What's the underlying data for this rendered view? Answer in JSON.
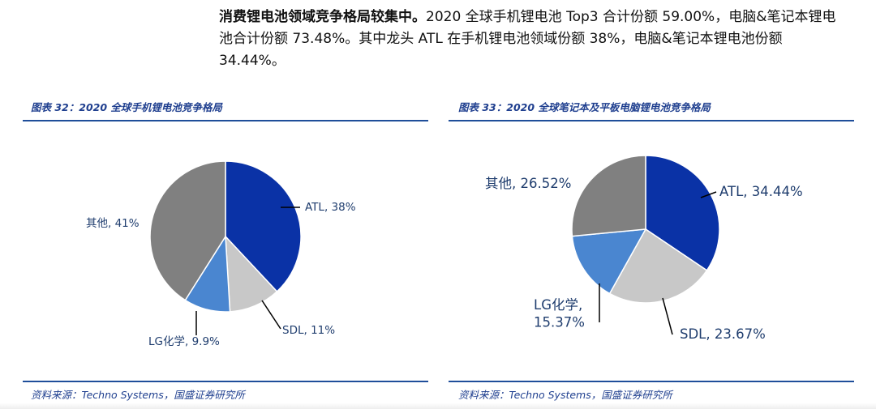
{
  "intro": {
    "lead": "消费锂电池领域竞争格局较集中。",
    "body": "2020 全球手机锂电池 Top3 合计份额 59.00%，电脑&笔记本锂电池合计份额 73.48%。其中龙头 ATL 在手机锂电池领域份额 38%，电脑&笔记本锂电池份额 34.44%。"
  },
  "colors": {
    "ATL": "#0a32a6",
    "SDL": "#c8c8c8",
    "LG": "#4a86d0",
    "other": "#808080",
    "label": "#1f3d6e",
    "title": "#1f3f8f",
    "rule": "#1f4e9a"
  },
  "chart_data": [
    {
      "type": "pie",
      "title": "图表 32：2020 全球手机锂电池竞争格局",
      "source": "资料来源：Techno Systems，国盛证券研究所",
      "slices": [
        {
          "name": "ATL",
          "value": 38,
          "label": "ATL, 38%",
          "color_key": "ATL"
        },
        {
          "name": "SDL",
          "value": 11,
          "label": "SDL, 11%",
          "color_key": "SDL"
        },
        {
          "name": "LG化学",
          "value": 9.9,
          "label": "LG化学, 9.9%",
          "color_key": "LG"
        },
        {
          "name": "其他",
          "value": 41,
          "label": "其他, 41%",
          "color_key": "other"
        }
      ]
    },
    {
      "type": "pie",
      "title": "图表 33：2020 全球笔记本及平板电脑锂电池竞争格局",
      "source": "资料来源：Techno Systems，国盛证券研究所",
      "slices": [
        {
          "name": "ATL",
          "value": 34.44,
          "label": "ATL, 34.44%",
          "color_key": "ATL"
        },
        {
          "name": "SDL",
          "value": 23.67,
          "label": "SDL, 23.67%",
          "color_key": "SDL"
        },
        {
          "name": "LG化学",
          "value": 15.37,
          "label": "LG化学,\n15.37%",
          "color_key": "LG"
        },
        {
          "name": "其他",
          "value": 26.52,
          "label": "其他, 26.52%",
          "color_key": "other"
        }
      ]
    }
  ]
}
